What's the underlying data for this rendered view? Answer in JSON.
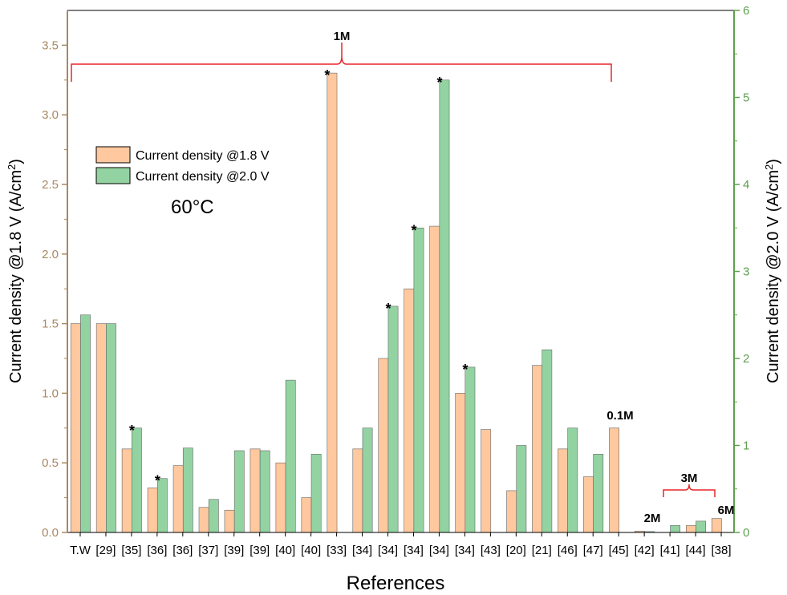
{
  "chart_data": {
    "type": "bar",
    "xlabel": "References",
    "ylabel_left": "Current density @1.8 V (A/cm²)",
    "ylabel_right": "Current density @2.0 V (A/cm²)",
    "ylim_left": [
      0,
      3.75
    ],
    "ylim_right": [
      0,
      6
    ],
    "yticks_left": [
      "0.0",
      "0.5",
      "1.0",
      "1.5",
      "2.0",
      "2.5",
      "3.0",
      "3.5"
    ],
    "yticks_right": [
      "0",
      "1",
      "2",
      "3",
      "4",
      "5",
      "6"
    ],
    "categories": [
      "T.W",
      "[29]",
      "[35]",
      "[36]",
      "[36]",
      "[37]",
      "[39]",
      "[39]",
      "[40]",
      "[40]",
      "[33]",
      "[34]",
      "[34]",
      "[34]",
      "[34]",
      "[34]",
      "[43]",
      "[20]",
      "[21]",
      "[46]",
      "[47]",
      "[45]",
      "[42]",
      "[41]",
      "[44]",
      "[38]"
    ],
    "series": [
      {
        "name": "Current density @1.8 V",
        "axis": "left",
        "color": "#FFC89E",
        "values": [
          1.5,
          1.5,
          0.6,
          0.32,
          0.48,
          0.18,
          0.16,
          0.6,
          0.5,
          0.25,
          3.3,
          0.6,
          1.25,
          1.75,
          2.2,
          1.0,
          0.74,
          0.3,
          1.2,
          0.6,
          0.4,
          0.75,
          0.01,
          0.0,
          0.05,
          0.1
        ]
      },
      {
        "name": "Current density @2.0 V",
        "axis": "right",
        "color": "#93D3A2",
        "values": [
          2.5,
          2.4,
          1.2,
          0.62,
          0.97,
          0.38,
          0.94,
          0.94,
          1.75,
          0.9,
          null,
          1.2,
          2.6,
          3.5,
          5.2,
          1.9,
          null,
          1.0,
          2.1,
          1.2,
          0.9,
          null,
          0.01,
          0.08,
          0.13,
          null
        ]
      }
    ],
    "star_markers": [
      {
        "category_index": 2,
        "series": 1
      },
      {
        "category_index": 3,
        "series": 1
      },
      {
        "category_index": 10,
        "series": 0
      },
      {
        "category_index": 12,
        "series": 1
      },
      {
        "category_index": 13,
        "series": 1
      },
      {
        "category_index": 14,
        "series": 1
      },
      {
        "category_index": 15,
        "series": 1
      }
    ],
    "star_symbol": "*",
    "annotations": {
      "bracket_1m_label": "1M",
      "label_01m": "0.1M",
      "label_2m": "2M",
      "bracket_3m_label": "3M",
      "label_6m": "6M",
      "temperature": "60°C"
    },
    "legend_position": "upper-left",
    "grid": false,
    "colors": {
      "left_axis": "#A88961",
      "right_axis": "#5E9F4F",
      "bracket": "#E8252B"
    }
  }
}
